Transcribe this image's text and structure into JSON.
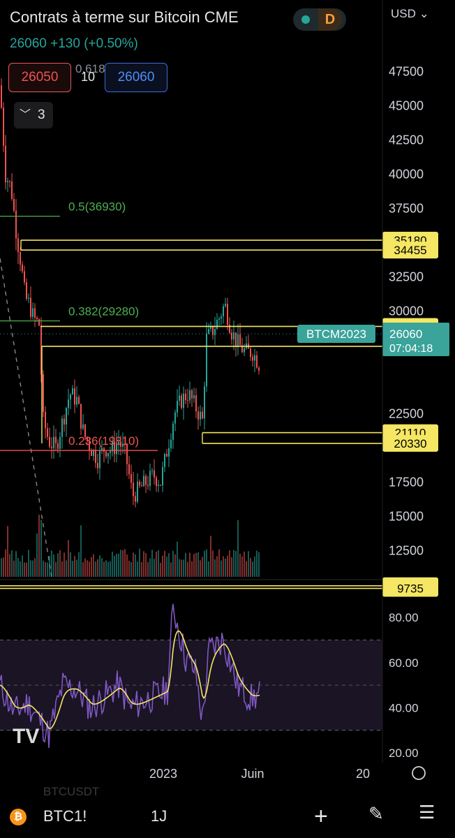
{
  "header": {
    "title": "Contrats à terme sur Bitcoin CME",
    "currency": "USD",
    "interval_badge": "D",
    "last_price": "26060",
    "change": "+130 (+0.50%)"
  },
  "order_panel": {
    "sell_price": "26050",
    "quantity": "10",
    "buy_price": "26060"
  },
  "indicators_toggle": {
    "count": "3"
  },
  "fib_levels": [
    {
      "label": "0.618",
      "value": 45500,
      "color": "#8a8f98"
    },
    {
      "label": "0.5(36930)",
      "value": 36930,
      "color": "#4caf50"
    },
    {
      "label": "0.382(29280)",
      "value": 29280,
      "color": "#4caf50"
    },
    {
      "label": "0.236(19810)",
      "value": 19810,
      "color": "#ef5350"
    }
  ],
  "horizontal_levels": [
    {
      "label": "35180",
      "value": 35180
    },
    {
      "label": "34455",
      "value": 34455
    },
    {
      "label": "28875",
      "value": 28875
    },
    {
      "label": "27420",
      "value": 27420
    },
    {
      "label": "21110",
      "value": 21110
    },
    {
      "label": "20330",
      "value": 20330
    },
    {
      "label": "9925",
      "value": 9925
    },
    {
      "label": "9735",
      "value": 9735
    }
  ],
  "price_axis": [
    "47500",
    "45000",
    "42500",
    "40000",
    "37500",
    "32500",
    "30000",
    "22500",
    "17500",
    "15000",
    "12500"
  ],
  "current_label": {
    "symbol": "BTCM2023",
    "price": "26060",
    "countdown": "07:04:18"
  },
  "rsi_axis": [
    "80.00",
    "60.00",
    "40.00",
    "20.00"
  ],
  "time_axis": [
    "2023",
    "Juin",
    "20"
  ],
  "bottom_toolbar": {
    "symbol": "BTC1!",
    "timeframe": "1J",
    "ghost_symbol": "BTCUSDT",
    "icons": [
      "bitcoin-icon",
      "plus-icon",
      "pen-icon",
      "menu-icon"
    ]
  },
  "watermark": "TV",
  "colors": {
    "up": "#26a69a",
    "down": "#ef5350",
    "level": "#f5e663",
    "rsi": "#7e57c2",
    "rsi_ma": "#f5e663"
  }
}
